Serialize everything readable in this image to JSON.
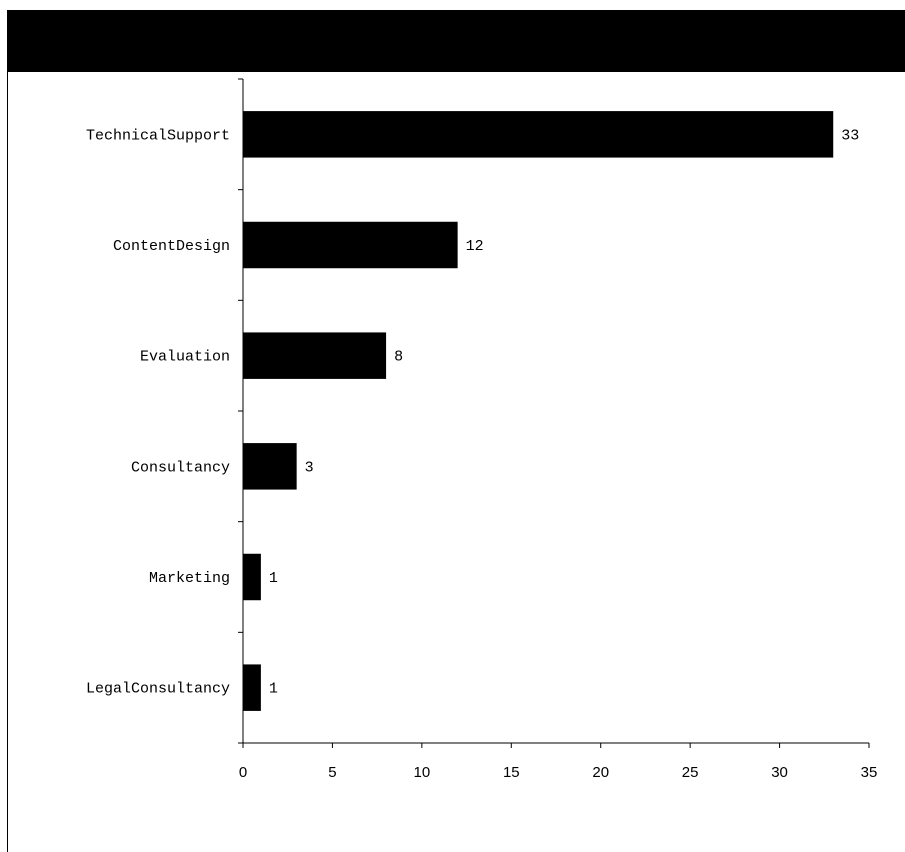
{
  "chart_data": {
    "type": "bar",
    "orientation": "horizontal",
    "title": "",
    "xlabel": "",
    "ylabel": "",
    "categories": [
      "TechnicalSupport",
      "ContentDesign",
      "Evaluation",
      "Consultancy",
      "Marketing",
      "LegalConsultancy"
    ],
    "values": [
      33,
      12,
      8,
      3,
      1,
      1
    ],
    "xlim": [
      0,
      35
    ],
    "xticks": [
      0,
      5,
      10,
      15,
      20,
      25,
      30,
      35
    ],
    "data_labels": true,
    "grid": false,
    "bar_color": "#000000",
    "title_bar_color": "#000000"
  }
}
